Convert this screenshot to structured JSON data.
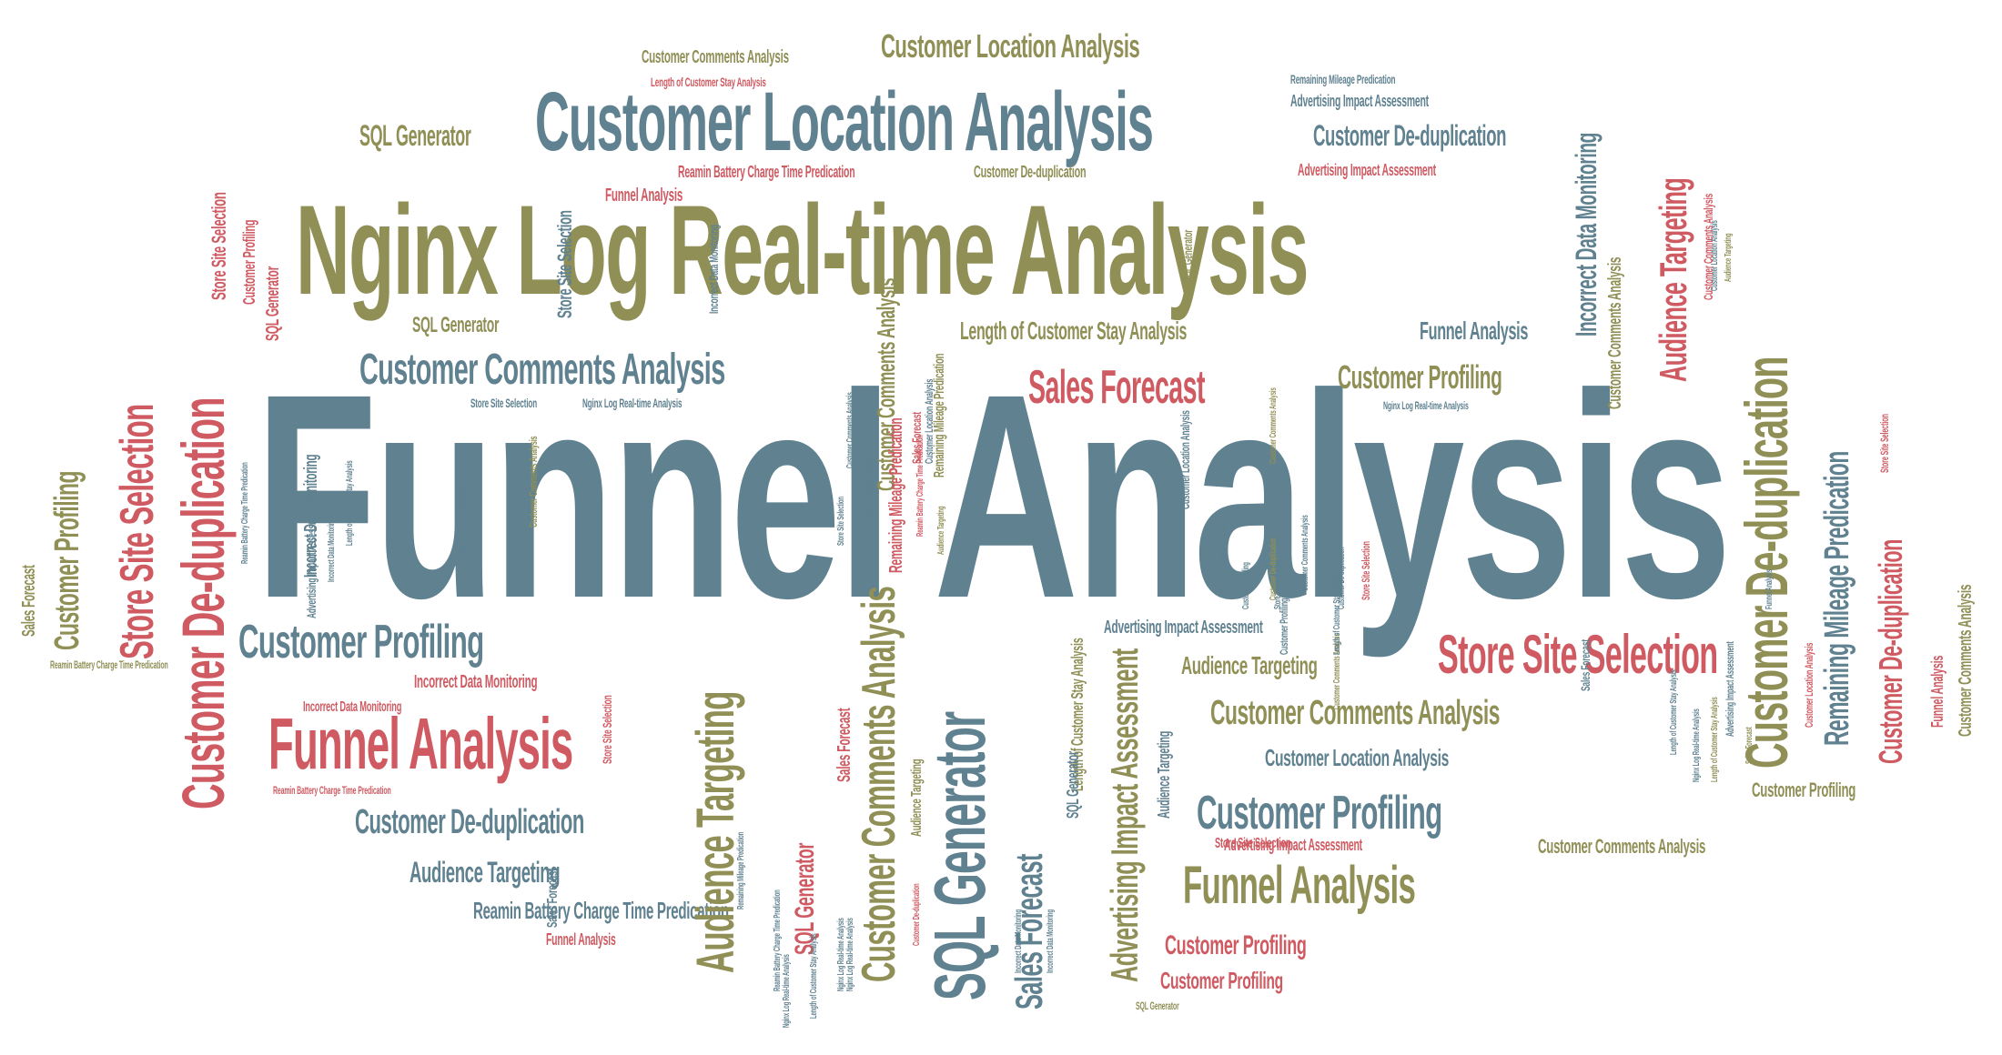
{
  "palette": {
    "teal": "#5f8190",
    "olive": "#8f8f56",
    "red": "#cf5a62"
  },
  "words": [
    "Funnel Analysis",
    "Nginx Log Real-time Analysis",
    "Customer Location Analysis",
    "Customer Location Analysis",
    "Customer Comments Analysis",
    "SQL Generator",
    "Customer De-duplication",
    "Remaining Mileage Predication",
    "Length of Customer Stay Analysis",
    "Reamin Battery Charge Time Predication",
    "Customer De-duplication",
    "Advertising Impact Assessment",
    "Advertising Impact Assessment",
    "Funnel Analysis",
    "Customer Comments Analysis",
    "SQL Generator",
    "Length of Customer Stay Analysis",
    "Funnel Analysis",
    "Sales Forecast",
    "Customer Profiling",
    "Nginx Log Real-time Analysis",
    "Store Site Selection",
    "Nginx Log Real-time Analysis",
    "Customer Profiling",
    "Funnel Analysis",
    "Incorrect Data Monitoring",
    "Incorrect Data Monitoring",
    "Customer De-duplication",
    "Audience Targeting",
    "Reamin Battery Charge Time Predication",
    "Funnel Analysis",
    "Reamin Battery Charge Time Predication",
    "Reamin Battery Charge Time Predication",
    "Advertising Impact Assessment",
    "Audience Targeting",
    "Store Site Selection",
    "Customer Comments Analysis",
    "Customer Location Analysis",
    "Customer Profiling",
    "Funnel Analysis",
    "Advertising Impact Assessment",
    "Customer Comments Analysis",
    "Customer Profiling",
    "Customer Profiling",
    "Customer Profiling",
    "Store Site Selection",
    "SQL Generator",
    "Customer De-duplication",
    "Store Site Selection",
    "Customer Profiling",
    "Sales Forecast",
    "Store Site Selection",
    "Customer Profiling",
    "SQL Generator",
    "Incorrect Data Monitoring",
    "Audience Targeting",
    "Customer Comments Analysis",
    "SQL Generator",
    "Sales Forecast",
    "Advertising Impact Assessment",
    "SQL Generator",
    "Sales Forecast",
    "Audience Targeting",
    "Length of Customer Stay Analysis",
    "Store Site Selection",
    "Audience Targeting",
    "Sales Forecast",
    "SQL Generator",
    "Customer Comments Analysis",
    "Remaining Mileage Predication",
    "Store Site Selection",
    "Sales Forecast",
    "Incorrect Data Monitoring",
    "SQL Generator",
    "Customer De-duplication",
    "Remaining Mileage Predication",
    "Customer De-duplication",
    "Audience Targeting",
    "Funnel Analysis",
    "Customer Comments Analysis",
    "Customer Comments Analysis",
    "Incorrect Data Monitoring",
    "Customer Comments Analysis",
    "Customer Location Analysis",
    "Audience Targeting",
    "Store Site Selection",
    "Advertising Impact Assessment",
    "Customer Location Analysis",
    "Length of Customer Stay Analysis",
    "Length of Customer Stay Analysis",
    "Nginx Log Real-time Analysis",
    "Funnel Analysis",
    "Sales Forecast",
    "Customer Profiling",
    "Store Site Selection",
    "Customer Comments Analysis",
    "Store Site Selection",
    "Customer Comments Analysis",
    "Length of Customer Stay Analysis",
    "Customer Comments Analysis",
    "Reamin Battery Charge Time Predication",
    "Length of Customer Stay Analysis",
    "Incorrect Data Monitoring",
    "Advertising Impact Assessment",
    "Customer Location Analysis",
    "Reamin Battery Charge Time Predication",
    "Store Site Selection",
    "Audience Targeting",
    "Customer Comments Analysis",
    "Remaining Mileage Predication",
    "Reamin Battery Charge Time Predication",
    "Customer De-duplication",
    "Nginx Log Real-time Analysis",
    "Customer De-duplication",
    "Customer De-duplication",
    "Sales Forecast",
    "Customer Location Analysis",
    "Customer Comments Analysis",
    "Remaining Mileage Predication",
    "Customer Location Analysis",
    "Incorrect Data Monitoring",
    "Incorrect Data Monitoring",
    "Nginx Log Real-time Analysis",
    "Length of Customer Stay Analysis",
    "Nginx Log Real-time Analysis",
    "Customer Comments Analysis",
    "Customer Profiling",
    "Nginx Log Real-time Analysis",
    "Incorrect Data Monitoring"
  ]
}
